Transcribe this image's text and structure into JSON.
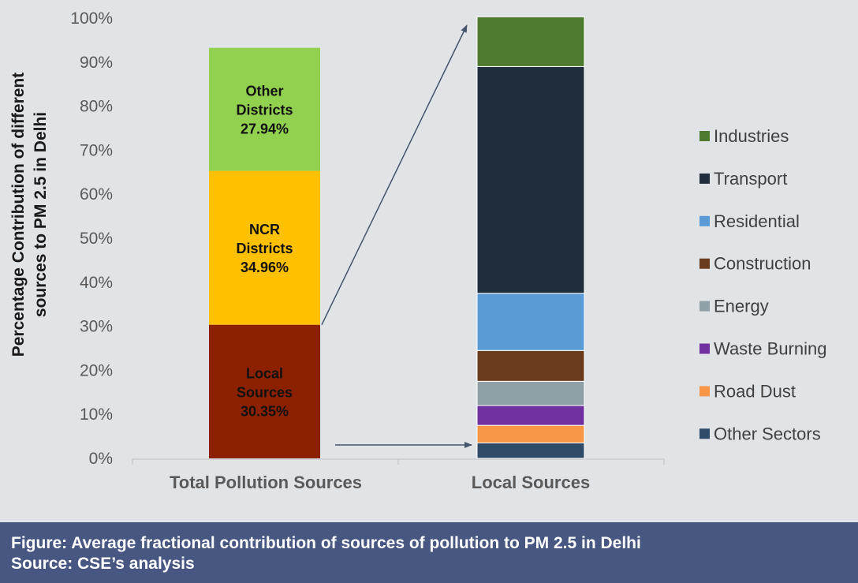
{
  "chart_data": {
    "type": "bar",
    "stacked": true,
    "ylabel_lines": [
      "Percentage Contribution of different",
      "sources to PM 2.5 in Delhi"
    ],
    "ylim": [
      0,
      100
    ],
    "yticks": [
      "0%",
      "10%",
      "20%",
      "30%",
      "40%",
      "50%",
      "60%",
      "70%",
      "80%",
      "90%",
      "100%"
    ],
    "grid": false,
    "legend_position": "right",
    "categories": [
      "Total Pollution Sources",
      "Local Sources"
    ],
    "bar1": [
      {
        "name": "Local Sources",
        "label_lines": [
          "Local",
          "Sources",
          "30.35%"
        ],
        "value": 30.35,
        "color": "#8b2100"
      },
      {
        "name": "NCR Districts",
        "label_lines": [
          "NCR",
          "Districts",
          "34.96%"
        ],
        "value": 34.96,
        "color": "#ffc000"
      },
      {
        "name": "Other Districts",
        "label_lines": [
          "Other",
          "Districts",
          "27.94%"
        ],
        "value": 27.94,
        "color": "#92d050"
      }
    ],
    "bar2": [
      {
        "name": "Other Sectors",
        "value": 3.5,
        "color": "#2f4b68"
      },
      {
        "name": "Road Dust",
        "value": 4.0,
        "color": "#f79646"
      },
      {
        "name": "Waste Burning",
        "value": 4.5,
        "color": "#7030a0"
      },
      {
        "name": "Energy",
        "value": 5.5,
        "color": "#8fa0a6"
      },
      {
        "name": "Construction",
        "value": 7.0,
        "color": "#6b3b1e"
      },
      {
        "name": "Residential",
        "value": 13.0,
        "color": "#5b9bd5"
      },
      {
        "name": "Transport",
        "value": 51.5,
        "color": "#1f2d3d"
      },
      {
        "name": "Industries",
        "value": 11.3,
        "color": "#4e7a2f"
      }
    ],
    "legend": [
      "Industries",
      "Transport",
      "Residential",
      "Construction",
      "Energy",
      "Waste Burning",
      "Road Dust",
      "Other Sectors"
    ]
  },
  "footer": {
    "caption": "Figure: Average fractional contribution of sources of pollution to PM 2.5 in Delhi",
    "source": "Source: CSE’s analysis"
  }
}
